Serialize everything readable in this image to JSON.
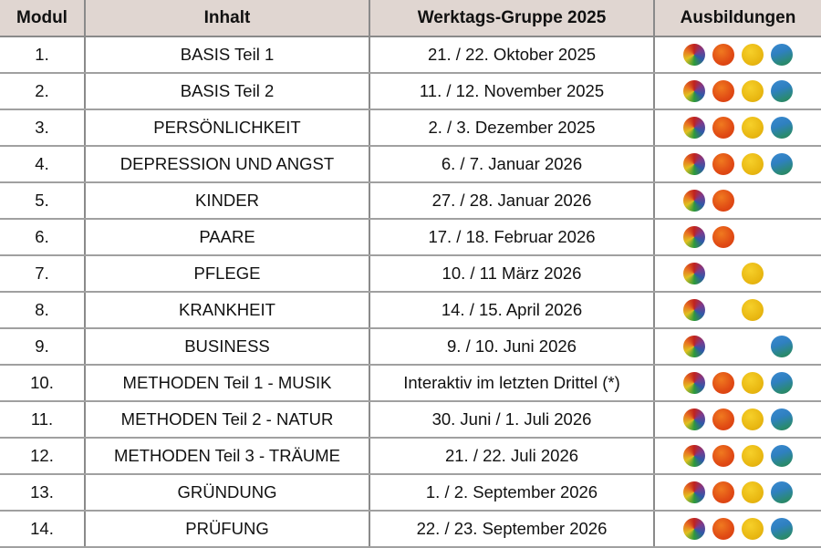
{
  "headers": [
    "Modul",
    "Inhalt",
    "Werktags-Gruppe 2025",
    "Ausbildungen"
  ],
  "ausbildung_icons": [
    {
      "name": "rainbow-circle-icon",
      "color": "#c0221e"
    },
    {
      "name": "orange-circle-icon",
      "color": "#e04a14"
    },
    {
      "name": "yellow-circle-icon",
      "color": "#e9b812"
    },
    {
      "name": "blue-circle-icon",
      "color": "#2f80c0"
    }
  ],
  "rows": [
    {
      "modul": "1.",
      "inhalt": "BASIS Teil 1",
      "datum": "21. / 22. Oktober 2025",
      "ausbildungen": [
        true,
        true,
        true,
        true
      ]
    },
    {
      "modul": "2.",
      "inhalt": "BASIS Teil 2",
      "datum": "11. / 12. November 2025",
      "ausbildungen": [
        true,
        true,
        true,
        true
      ]
    },
    {
      "modul": "3.",
      "inhalt": "PERSÖNLICHKEIT",
      "datum": "2. / 3. Dezember 2025",
      "ausbildungen": [
        true,
        true,
        true,
        true
      ]
    },
    {
      "modul": "4.",
      "inhalt": "DEPRESSION UND ANGST",
      "datum": "6. / 7. Januar 2026",
      "ausbildungen": [
        true,
        true,
        true,
        true
      ]
    },
    {
      "modul": "5.",
      "inhalt": "KINDER",
      "datum": "27. / 28. Januar 2026",
      "ausbildungen": [
        true,
        true,
        false,
        false
      ]
    },
    {
      "modul": "6.",
      "inhalt": "PAARE",
      "datum": "17. / 18. Februar 2026",
      "ausbildungen": [
        true,
        true,
        false,
        false
      ]
    },
    {
      "modul": "7.",
      "inhalt": "PFLEGE",
      "datum": "10. / 11 März 2026",
      "ausbildungen": [
        true,
        false,
        true,
        false
      ]
    },
    {
      "modul": "8.",
      "inhalt": "KRANKHEIT",
      "datum": "14. / 15. April 2026",
      "ausbildungen": [
        true,
        false,
        true,
        false
      ]
    },
    {
      "modul": "9.",
      "inhalt": "BUSINESS",
      "datum": "9. / 10. Juni 2026",
      "ausbildungen": [
        true,
        false,
        false,
        true
      ]
    },
    {
      "modul": "10.",
      "inhalt": "METHODEN Teil 1 - MUSIK",
      "datum": "Interaktiv im letzten Drittel (*)",
      "ausbildungen": [
        true,
        true,
        true,
        true
      ]
    },
    {
      "modul": "11.",
      "inhalt": "METHODEN Teil 2 -  NATUR",
      "datum": "30. Juni / 1. Juli 2026",
      "ausbildungen": [
        true,
        true,
        true,
        true
      ]
    },
    {
      "modul": "12.",
      "inhalt": "METHODEN Teil 3 - TRÄUME",
      "datum": "21. / 22. Juli 2026",
      "ausbildungen": [
        true,
        true,
        true,
        true
      ]
    },
    {
      "modul": "13.",
      "inhalt": "GRÜNDUNG",
      "datum": "1. / 2. September 2026",
      "ausbildungen": [
        true,
        true,
        true,
        true
      ]
    },
    {
      "modul": "14.",
      "inhalt": "PRÜFUNG",
      "datum": "22. / 23. September 2026",
      "ausbildungen": [
        true,
        true,
        true,
        true
      ]
    }
  ]
}
